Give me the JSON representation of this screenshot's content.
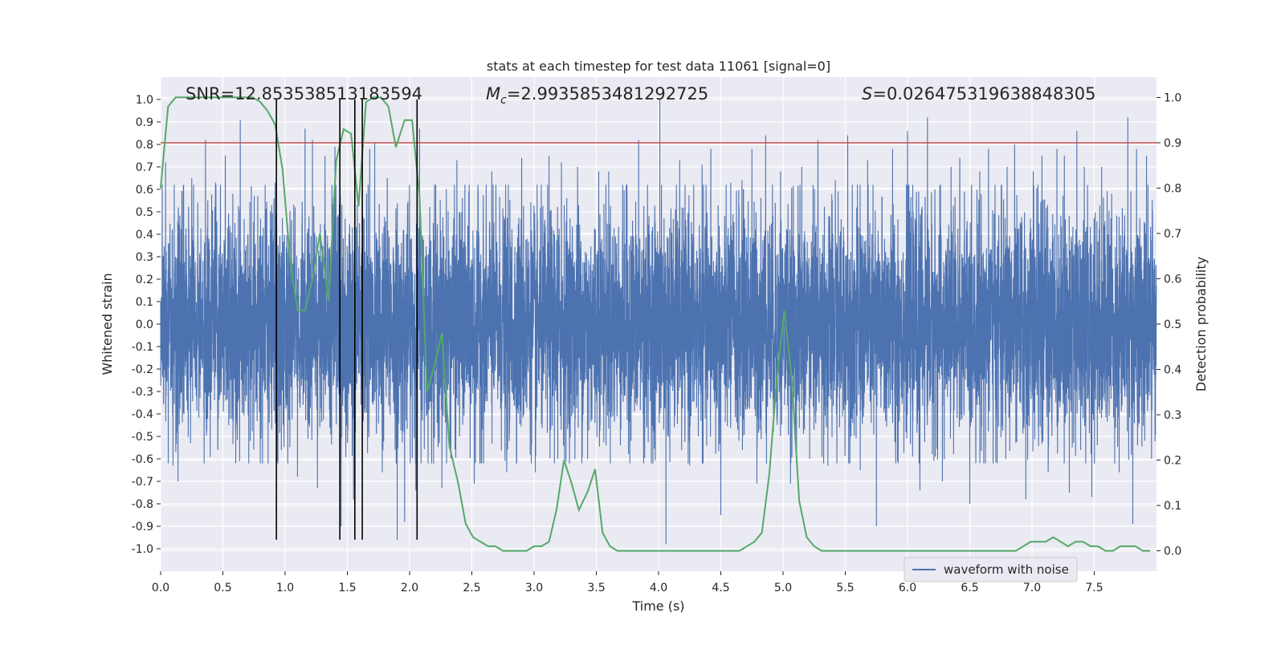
{
  "chart_data": {
    "type": "line",
    "title": "stats at each timestep for test data 11061 [signal=0]",
    "xlabel": "Time (s)",
    "ylabel": "Whitened strain",
    "y2label": "Detection probability",
    "xlim": [
      0.0,
      8.0
    ],
    "ylim": [
      -1.1,
      1.1
    ],
    "y2lim": [
      -0.045,
      1.045
    ],
    "xticks": [
      0.0,
      0.5,
      1.0,
      1.5,
      2.0,
      2.5,
      3.0,
      3.5,
      4.0,
      4.5,
      5.0,
      5.5,
      6.0,
      6.5,
      7.0,
      7.5
    ],
    "xtick_labels": [
      "0.0",
      "0.5",
      "1.0",
      "1.5",
      "2.0",
      "2.5",
      "3.0",
      "3.5",
      "4.0",
      "4.5",
      "5.0",
      "5.5",
      "6.0",
      "6.5",
      "7.0",
      "7.5"
    ],
    "yticks": [
      1.0,
      0.9,
      0.8,
      0.7,
      0.6,
      0.5,
      0.4,
      0.3,
      0.2,
      0.1,
      0.0,
      -0.1,
      -0.2,
      -0.3,
      -0.4,
      -0.5,
      -0.6,
      -0.7,
      -0.8,
      -0.9,
      -1.0
    ],
    "ytick_labels": [
      "1.0",
      "0.9",
      "0.8",
      "0.7",
      "0.6",
      "0.5",
      "0.4",
      "0.3",
      "0.2",
      "0.1",
      "0.0",
      "-0.1",
      "-0.2",
      "-0.3",
      "-0.4",
      "-0.5",
      "-0.6",
      "-0.7",
      "-0.8",
      "-0.9",
      "-1.0"
    ],
    "y2ticks": [
      1.0,
      0.9,
      0.8,
      0.7,
      0.6,
      0.5,
      0.4,
      0.3,
      0.2,
      0.1,
      0.0
    ],
    "y2tick_labels": [
      "1.0",
      "0.9",
      "0.8",
      "0.7",
      "0.6",
      "0.5",
      "0.4",
      "0.3",
      "0.2",
      "0.1",
      "0.0"
    ],
    "grid": true,
    "annotations": {
      "snr": "SNR=12.853538513183594",
      "mc_symbol": "M",
      "mc_sub": "c",
      "mc_value": "=2.9935853481292725",
      "s_symbol": "S",
      "s_value": "=0.026475319638848305"
    },
    "legend": {
      "placement": "bottom-right",
      "entries": [
        "waveform with noise"
      ]
    },
    "threshold": {
      "value": 0.9,
      "axis": "right",
      "color": "#c44e52"
    },
    "vlines": [
      0.93,
      1.44,
      1.56,
      1.62,
      2.06
    ],
    "vline_range": [
      -0.96,
      1.0
    ],
    "waveform": {
      "name": "waveform with noise",
      "color": "#4c72b0",
      "samples": 8192,
      "noise_sigma": 0.25,
      "peaks": [
        [
          0.04,
          0.72
        ],
        [
          0.1,
          -0.63
        ],
        [
          0.14,
          -0.7
        ],
        [
          0.25,
          0.65
        ],
        [
          0.36,
          0.82
        ],
        [
          0.44,
          0.63
        ],
        [
          0.46,
          -0.56
        ],
        [
          0.52,
          0.75
        ],
        [
          0.58,
          0.58
        ],
        [
          0.64,
          0.91
        ],
        [
          0.72,
          -0.52
        ],
        [
          0.78,
          0.57
        ],
        [
          0.84,
          0.62
        ],
        [
          0.92,
          0.63
        ],
        [
          0.97,
          -0.56
        ],
        [
          1.08,
          0.52
        ],
        [
          1.1,
          -0.68
        ],
        [
          1.16,
          0.87
        ],
        [
          1.22,
          0.82
        ],
        [
          1.26,
          -0.73
        ],
        [
          1.32,
          0.75
        ],
        [
          1.4,
          0.79
        ],
        [
          1.45,
          -0.9
        ],
        [
          1.55,
          -0.78
        ],
        [
          1.58,
          0.53
        ],
        [
          1.68,
          0.78
        ],
        [
          1.72,
          0.81
        ],
        [
          1.78,
          -0.66
        ],
        [
          1.82,
          0.65
        ],
        [
          1.9,
          -0.96
        ],
        [
          1.96,
          -0.88
        ],
        [
          2.05,
          -0.74
        ],
        [
          2.08,
          0.87
        ],
        [
          2.2,
          0.62
        ],
        [
          2.26,
          -0.73
        ],
        [
          2.38,
          0.73
        ],
        [
          2.42,
          0.5
        ],
        [
          2.52,
          -0.71
        ],
        [
          2.66,
          0.68
        ],
        [
          2.78,
          -0.66
        ],
        [
          2.9,
          0.74
        ],
        [
          3.01,
          -0.66
        ],
        [
          3.12,
          0.75
        ],
        [
          3.19,
          -0.6
        ],
        [
          3.22,
          0.72
        ],
        [
          3.35,
          0.7
        ],
        [
          3.43,
          -0.6
        ],
        [
          3.52,
          0.68
        ],
        [
          3.6,
          0.68
        ],
        [
          3.74,
          0.62
        ],
        [
          3.84,
          0.82
        ],
        [
          3.88,
          -0.62
        ],
        [
          4.01,
          1.0
        ],
        [
          4.06,
          -0.98
        ],
        [
          4.17,
          0.73
        ],
        [
          4.25,
          -0.63
        ],
        [
          4.35,
          0.71
        ],
        [
          4.42,
          0.78
        ],
        [
          4.5,
          -0.85
        ],
        [
          4.58,
          0.63
        ],
        [
          4.67,
          0.64
        ],
        [
          4.75,
          0.78
        ],
        [
          4.79,
          -0.71
        ],
        [
          4.86,
          0.84
        ],
        [
          4.98,
          0.68
        ],
        [
          5.06,
          -0.71
        ],
        [
          5.15,
          0.7
        ],
        [
          5.28,
          0.82
        ],
        [
          5.36,
          -0.63
        ],
        [
          5.42,
          0.64
        ],
        [
          5.52,
          0.84
        ],
        [
          5.62,
          -0.65
        ],
        [
          5.68,
          0.73
        ],
        [
          5.75,
          -0.9
        ],
        [
          5.88,
          0.78
        ],
        [
          5.92,
          -0.61
        ],
        [
          6.0,
          0.86
        ],
        [
          6.1,
          -0.74
        ],
        [
          6.16,
          0.92
        ],
        [
          6.22,
          0.6
        ],
        [
          6.28,
          -0.7
        ],
        [
          6.35,
          0.7
        ],
        [
          6.42,
          0.74
        ],
        [
          6.5,
          -0.8
        ],
        [
          6.58,
          0.68
        ],
        [
          6.65,
          0.78
        ],
        [
          6.72,
          -0.62
        ],
        [
          6.8,
          0.7
        ],
        [
          6.86,
          0.8
        ],
        [
          6.95,
          -0.78
        ],
        [
          7.01,
          0.68
        ],
        [
          7.08,
          0.75
        ],
        [
          7.13,
          -0.66
        ],
        [
          7.2,
          0.78
        ],
        [
          7.26,
          0.75
        ],
        [
          7.3,
          -0.75
        ],
        [
          7.36,
          0.86
        ],
        [
          7.42,
          0.7
        ],
        [
          7.48,
          -0.77
        ],
        [
          7.56,
          0.7
        ],
        [
          7.64,
          0.58
        ],
        [
          7.7,
          -0.66
        ],
        [
          7.77,
          0.92
        ],
        [
          7.81,
          -0.89
        ],
        [
          7.84,
          0.78
        ],
        [
          7.92,
          0.75
        ],
        [
          7.96,
          -0.6
        ]
      ]
    },
    "probability": {
      "name": "Detection probability",
      "color": "#55a868",
      "x": [
        0.0,
        0.06,
        0.12,
        0.18,
        0.25,
        0.31,
        0.37,
        0.43,
        0.49,
        0.55,
        0.61,
        0.67,
        0.74,
        0.8,
        0.86,
        0.92,
        0.98,
        1.04,
        1.1,
        1.16,
        1.22,
        1.28,
        1.35,
        1.41,
        1.47,
        1.53,
        1.59,
        1.65,
        1.71,
        1.77,
        1.83,
        1.89,
        1.96,
        2.02,
        2.08,
        2.14,
        2.2,
        2.26,
        2.32,
        2.39,
        2.45,
        2.51,
        2.57,
        2.63,
        2.69,
        2.75,
        2.81,
        2.87,
        2.94,
        3.0,
        3.06,
        3.12,
        3.18,
        3.24,
        3.3,
        3.36,
        3.43,
        3.49,
        3.55,
        3.61,
        3.67,
        3.73,
        3.79,
        3.85,
        3.91,
        3.98,
        4.04,
        4.1,
        4.16,
        4.22,
        4.28,
        4.34,
        4.4,
        4.47,
        4.53,
        4.59,
        4.65,
        4.71,
        4.77,
        4.83,
        4.89,
        4.95,
        5.01,
        5.07,
        5.13,
        5.19,
        5.25,
        5.31,
        5.37,
        5.43,
        5.49,
        5.55,
        5.61,
        5.67,
        5.73,
        5.79,
        5.85,
        5.91,
        5.97,
        6.03,
        6.09,
        6.15,
        6.21,
        6.27,
        6.33,
        6.39,
        6.45,
        6.51,
        6.57,
        6.63,
        6.69,
        6.75,
        6.81,
        6.87,
        6.93,
        6.99,
        7.05,
        7.11,
        7.17,
        7.23,
        7.29,
        7.35,
        7.41,
        7.47,
        7.53,
        7.59,
        7.65,
        7.71,
        7.77,
        7.83,
        7.89,
        7.95
      ],
      "y": [
        0.8,
        0.98,
        1.0,
        1.0,
        1.0,
        1.0,
        1.0,
        1.0,
        1.0,
        1.0,
        1.0,
        1.0,
        1.0,
        0.99,
        0.97,
        0.94,
        0.84,
        0.64,
        0.53,
        0.53,
        0.6,
        0.7,
        0.55,
        0.86,
        0.93,
        0.92,
        0.76,
        0.99,
        1.0,
        1.0,
        0.98,
        0.89,
        0.95,
        0.95,
        0.78,
        0.35,
        0.41,
        0.48,
        0.23,
        0.15,
        0.06,
        0.03,
        0.02,
        0.01,
        0.01,
        0.0,
        0.0,
        0.0,
        0.0,
        0.01,
        0.01,
        0.02,
        0.09,
        0.2,
        0.15,
        0.09,
        0.13,
        0.18,
        0.04,
        0.01,
        0.0,
        0.0,
        0.0,
        0.0,
        0.0,
        0.0,
        0.0,
        0.0,
        0.0,
        0.0,
        0.0,
        0.0,
        0.0,
        0.0,
        0.0,
        0.0,
        0.0,
        0.01,
        0.02,
        0.04,
        0.17,
        0.38,
        0.53,
        0.38,
        0.11,
        0.03,
        0.01,
        0.0,
        0.0,
        0.0,
        0.0,
        0.0,
        0.0,
        0.0,
        0.0,
        0.0,
        0.0,
        0.0,
        0.0,
        0.0,
        0.0,
        0.0,
        0.0,
        0.0,
        0.0,
        0.0,
        0.0,
        0.0,
        0.0,
        0.0,
        0.0,
        0.0,
        0.0,
        0.0,
        0.01,
        0.02,
        0.02,
        0.02,
        0.03,
        0.02,
        0.01,
        0.02,
        0.02,
        0.01,
        0.01,
        0.0,
        0.0,
        0.01,
        0.01,
        0.01,
        0.0,
        0.0
      ]
    }
  }
}
